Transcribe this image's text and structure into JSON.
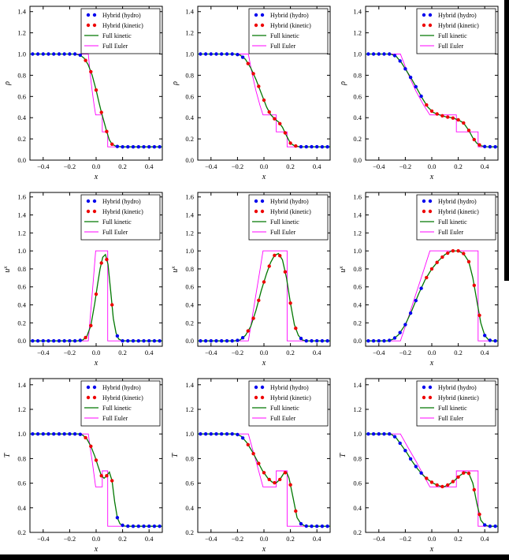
{
  "chart_data": {
    "type": "line",
    "title": "",
    "xlabel": "x",
    "xlim": [
      -0.5,
      0.5
    ],
    "xticks": [
      -0.4,
      -0.2,
      0,
      0.2,
      0.4
    ],
    "legend_position": "upper right",
    "grid": false,
    "legend": [
      {
        "label": "Hybrid (hydro)",
        "style": "markers",
        "color": "hybrid_hydro"
      },
      {
        "label": "Hybrid (kinetic)",
        "style": "markers",
        "color": "hybrid_kinetic"
      },
      {
        "label": "Full kinetic",
        "style": "line",
        "color": "kinetic"
      },
      {
        "label": "Full Euler",
        "style": "line",
        "color": "euler"
      }
    ],
    "colors": {
      "hybrid_hydro": "#0000ee",
      "hybrid_kinetic": "#ee0000",
      "kinetic": "#007700",
      "euler": "#ff00ff",
      "axis": "#000000"
    },
    "marker": {
      "start": -0.48,
      "step": 0.04,
      "count": 25
    },
    "red_intervals": [
      [
        -0.09,
        0.155
      ],
      [
        -0.13,
        0.245
      ],
      [
        -0.07,
        0.375
      ]
    ],
    "rows": [
      {
        "key": "rho",
        "ylabel": "ρ",
        "ylabel_sup": "",
        "ylim": [
          0,
          1.45
        ],
        "yticks": [
          0,
          0.2,
          0.4,
          0.6,
          0.8,
          1.0,
          1.2,
          1.4
        ]
      },
      {
        "key": "ux",
        "ylabel": "u",
        "ylabel_sup": "x",
        "ylim": [
          -0.06,
          1.65
        ],
        "yticks": [
          0,
          0.2,
          0.4,
          0.6,
          0.8,
          1.0,
          1.2,
          1.4,
          1.6
        ]
      },
      {
        "key": "T",
        "ylabel": "T",
        "ylabel_sup": "",
        "ylim": [
          0.2,
          1.45
        ],
        "yticks": [
          0.2,
          0.4,
          0.6,
          0.8,
          1.0,
          1.2,
          1.4
        ]
      }
    ],
    "subplots": [
      {
        "row": 0,
        "col": 0,
        "kinetic": [
          [
            -0.5,
            1.0
          ],
          [
            -0.16,
            1.0
          ],
          [
            -0.12,
            0.99
          ],
          [
            -0.09,
            0.96
          ],
          [
            -0.06,
            0.9
          ],
          [
            -0.03,
            0.8
          ],
          [
            0.0,
            0.66
          ],
          [
            0.02,
            0.55
          ],
          [
            0.04,
            0.45
          ],
          [
            0.06,
            0.36
          ],
          [
            0.08,
            0.27
          ],
          [
            0.1,
            0.19
          ],
          [
            0.12,
            0.15
          ],
          [
            0.15,
            0.13
          ],
          [
            0.2,
            0.125
          ],
          [
            0.5,
            0.125
          ]
        ],
        "euler": [
          [
            -0.5,
            1.0
          ],
          [
            -0.059,
            1.0
          ],
          [
            -0.045,
            0.815
          ],
          [
            -0.03,
            0.652
          ],
          [
            -0.015,
            0.515
          ],
          [
            -0.0035,
            0.426
          ],
          [
            0.0465,
            0.426
          ],
          [
            0.0465,
            0.266
          ],
          [
            0.0876,
            0.266
          ],
          [
            0.0876,
            0.125
          ],
          [
            0.5,
            0.125
          ]
        ]
      },
      {
        "row": 0,
        "col": 1,
        "kinetic": [
          [
            -0.5,
            1.0
          ],
          [
            -0.22,
            1.0
          ],
          [
            -0.18,
            0.99
          ],
          [
            -0.14,
            0.95
          ],
          [
            -0.1,
            0.87
          ],
          [
            -0.06,
            0.76
          ],
          [
            -0.02,
            0.63
          ],
          [
            0.02,
            0.5
          ],
          [
            0.05,
            0.43
          ],
          [
            0.08,
            0.39
          ],
          [
            0.11,
            0.36
          ],
          [
            0.14,
            0.31
          ],
          [
            0.17,
            0.23
          ],
          [
            0.2,
            0.16
          ],
          [
            0.23,
            0.135
          ],
          [
            0.27,
            0.126
          ],
          [
            0.5,
            0.125
          ]
        ],
        "euler": [
          [
            -0.5,
            1.0
          ],
          [
            -0.118,
            1.0
          ],
          [
            -0.09,
            0.815
          ],
          [
            -0.06,
            0.652
          ],
          [
            -0.03,
            0.515
          ],
          [
            -0.007,
            0.426
          ],
          [
            0.093,
            0.426
          ],
          [
            0.093,
            0.266
          ],
          [
            0.175,
            0.266
          ],
          [
            0.175,
            0.125
          ],
          [
            0.5,
            0.125
          ]
        ]
      },
      {
        "row": 0,
        "col": 2,
        "kinetic": [
          [
            -0.5,
            1.0
          ],
          [
            -0.31,
            1.0
          ],
          [
            -0.27,
            0.98
          ],
          [
            -0.23,
            0.92
          ],
          [
            -0.19,
            0.84
          ],
          [
            -0.15,
            0.76
          ],
          [
            -0.11,
            0.67
          ],
          [
            -0.07,
            0.58
          ],
          [
            -0.03,
            0.5
          ],
          [
            0.01,
            0.45
          ],
          [
            0.05,
            0.43
          ],
          [
            0.1,
            0.41
          ],
          [
            0.15,
            0.4
          ],
          [
            0.2,
            0.38
          ],
          [
            0.24,
            0.35
          ],
          [
            0.28,
            0.28
          ],
          [
            0.31,
            0.21
          ],
          [
            0.34,
            0.16
          ],
          [
            0.37,
            0.135
          ],
          [
            0.41,
            0.126
          ],
          [
            0.5,
            0.125
          ]
        ],
        "euler": [
          [
            -0.5,
            1.0
          ],
          [
            -0.237,
            1.0
          ],
          [
            -0.18,
            0.815
          ],
          [
            -0.12,
            0.652
          ],
          [
            -0.06,
            0.515
          ],
          [
            -0.014,
            0.426
          ],
          [
            0.186,
            0.426
          ],
          [
            0.186,
            0.266
          ],
          [
            0.35,
            0.266
          ],
          [
            0.35,
            0.125
          ],
          [
            0.5,
            0.125
          ]
        ]
      },
      {
        "row": 1,
        "col": 0,
        "kinetic": [
          [
            -0.5,
            0
          ],
          [
            -0.14,
            0
          ],
          [
            -0.1,
            0.01
          ],
          [
            -0.07,
            0.05
          ],
          [
            -0.04,
            0.17
          ],
          [
            -0.01,
            0.42
          ],
          [
            0.01,
            0.62
          ],
          [
            0.03,
            0.8
          ],
          [
            0.05,
            0.93
          ],
          [
            0.07,
            0.96
          ],
          [
            0.09,
            0.85
          ],
          [
            0.11,
            0.55
          ],
          [
            0.13,
            0.25
          ],
          [
            0.15,
            0.09
          ],
          [
            0.17,
            0.02
          ],
          [
            0.2,
            0
          ],
          [
            0.5,
            0
          ]
        ],
        "euler": [
          [
            -0.5,
            0
          ],
          [
            -0.059,
            0
          ],
          [
            -0.045,
            0.25
          ],
          [
            -0.03,
            0.52
          ],
          [
            -0.015,
            0.79
          ],
          [
            -0.0035,
            1.0
          ],
          [
            0.0876,
            1.0
          ],
          [
            0.0876,
            0
          ],
          [
            0.5,
            0
          ]
        ]
      },
      {
        "row": 1,
        "col": 1,
        "kinetic": [
          [
            -0.5,
            0
          ],
          [
            -0.22,
            0
          ],
          [
            -0.18,
            0.01
          ],
          [
            -0.14,
            0.06
          ],
          [
            -0.1,
            0.16
          ],
          [
            -0.06,
            0.34
          ],
          [
            -0.02,
            0.56
          ],
          [
            0.02,
            0.75
          ],
          [
            0.05,
            0.87
          ],
          [
            0.08,
            0.95
          ],
          [
            0.11,
            0.97
          ],
          [
            0.14,
            0.9
          ],
          [
            0.17,
            0.7
          ],
          [
            0.2,
            0.42
          ],
          [
            0.23,
            0.18
          ],
          [
            0.26,
            0.06
          ],
          [
            0.29,
            0.01
          ],
          [
            0.32,
            0
          ],
          [
            0.5,
            0
          ]
        ],
        "euler": [
          [
            -0.5,
            0
          ],
          [
            -0.118,
            0
          ],
          [
            -0.09,
            0.25
          ],
          [
            -0.06,
            0.52
          ],
          [
            -0.03,
            0.79
          ],
          [
            -0.007,
            1.0
          ],
          [
            0.175,
            1.0
          ],
          [
            0.175,
            0
          ],
          [
            0.5,
            0
          ]
        ]
      },
      {
        "row": 1,
        "col": 2,
        "kinetic": [
          [
            -0.5,
            0
          ],
          [
            -0.33,
            0
          ],
          [
            -0.29,
            0.02
          ],
          [
            -0.25,
            0.07
          ],
          [
            -0.2,
            0.18
          ],
          [
            -0.15,
            0.34
          ],
          [
            -0.1,
            0.52
          ],
          [
            -0.05,
            0.68
          ],
          [
            0.0,
            0.8
          ],
          [
            0.05,
            0.89
          ],
          [
            0.1,
            0.96
          ],
          [
            0.15,
            1.0
          ],
          [
            0.2,
            1.0
          ],
          [
            0.24,
            0.97
          ],
          [
            0.28,
            0.88
          ],
          [
            0.31,
            0.7
          ],
          [
            0.34,
            0.45
          ],
          [
            0.37,
            0.2
          ],
          [
            0.4,
            0.06
          ],
          [
            0.43,
            0.01
          ],
          [
            0.46,
            0
          ],
          [
            0.5,
            0
          ]
        ],
        "euler": [
          [
            -0.5,
            0
          ],
          [
            -0.237,
            0
          ],
          [
            -0.18,
            0.25
          ],
          [
            -0.12,
            0.52
          ],
          [
            -0.06,
            0.79
          ],
          [
            -0.014,
            1.0
          ],
          [
            0.35,
            1.0
          ],
          [
            0.35,
            0
          ],
          [
            0.5,
            0
          ]
        ]
      },
      {
        "row": 2,
        "col": 0,
        "kinetic": [
          [
            -0.5,
            1.0
          ],
          [
            -0.13,
            1.0
          ],
          [
            -0.1,
            0.99
          ],
          [
            -0.07,
            0.96
          ],
          [
            -0.04,
            0.9
          ],
          [
            -0.01,
            0.82
          ],
          [
            0.02,
            0.72
          ],
          [
            0.04,
            0.66
          ],
          [
            0.06,
            0.64
          ],
          [
            0.08,
            0.66
          ],
          [
            0.1,
            0.69
          ],
          [
            0.12,
            0.62
          ],
          [
            0.14,
            0.45
          ],
          [
            0.16,
            0.32
          ],
          [
            0.18,
            0.27
          ],
          [
            0.21,
            0.252
          ],
          [
            0.25,
            0.25
          ],
          [
            0.5,
            0.25
          ]
        ],
        "euler": [
          [
            -0.5,
            1.0
          ],
          [
            -0.059,
            1.0
          ],
          [
            -0.045,
            0.89
          ],
          [
            -0.03,
            0.78
          ],
          [
            -0.015,
            0.66
          ],
          [
            -0.0035,
            0.57
          ],
          [
            0.0465,
            0.57
          ],
          [
            0.0465,
            0.7
          ],
          [
            0.0876,
            0.7
          ],
          [
            0.0876,
            0.25
          ],
          [
            0.5,
            0.25
          ]
        ]
      },
      {
        "row": 2,
        "col": 1,
        "kinetic": [
          [
            -0.5,
            1.0
          ],
          [
            -0.21,
            1.0
          ],
          [
            -0.17,
            0.98
          ],
          [
            -0.13,
            0.93
          ],
          [
            -0.09,
            0.86
          ],
          [
            -0.05,
            0.78
          ],
          [
            -0.01,
            0.7
          ],
          [
            0.03,
            0.64
          ],
          [
            0.06,
            0.61
          ],
          [
            0.09,
            0.6
          ],
          [
            0.12,
            0.63
          ],
          [
            0.15,
            0.68
          ],
          [
            0.17,
            0.69
          ],
          [
            0.19,
            0.64
          ],
          [
            0.22,
            0.48
          ],
          [
            0.25,
            0.32
          ],
          [
            0.28,
            0.27
          ],
          [
            0.31,
            0.252
          ],
          [
            0.35,
            0.25
          ],
          [
            0.5,
            0.25
          ]
        ],
        "euler": [
          [
            -0.5,
            1.0
          ],
          [
            -0.118,
            1.0
          ],
          [
            -0.09,
            0.89
          ],
          [
            -0.06,
            0.78
          ],
          [
            -0.03,
            0.66
          ],
          [
            -0.007,
            0.57
          ],
          [
            0.093,
            0.57
          ],
          [
            0.093,
            0.7
          ],
          [
            0.175,
            0.7
          ],
          [
            0.175,
            0.25
          ],
          [
            0.5,
            0.25
          ]
        ]
      },
      {
        "row": 2,
        "col": 2,
        "kinetic": [
          [
            -0.5,
            1.0
          ],
          [
            -0.31,
            1.0
          ],
          [
            -0.27,
            0.97
          ],
          [
            -0.23,
            0.91
          ],
          [
            -0.19,
            0.85
          ],
          [
            -0.15,
            0.78
          ],
          [
            -0.11,
            0.72
          ],
          [
            -0.07,
            0.67
          ],
          [
            -0.03,
            0.63
          ],
          [
            0.01,
            0.6
          ],
          [
            0.05,
            0.58
          ],
          [
            0.09,
            0.57
          ],
          [
            0.13,
            0.59
          ],
          [
            0.17,
            0.62
          ],
          [
            0.21,
            0.66
          ],
          [
            0.25,
            0.69
          ],
          [
            0.28,
            0.68
          ],
          [
            0.31,
            0.6
          ],
          [
            0.34,
            0.44
          ],
          [
            0.37,
            0.3
          ],
          [
            0.4,
            0.26
          ],
          [
            0.43,
            0.25
          ],
          [
            0.5,
            0.25
          ]
        ],
        "euler": [
          [
            -0.5,
            1.0
          ],
          [
            -0.237,
            1.0
          ],
          [
            -0.18,
            0.89
          ],
          [
            -0.12,
            0.78
          ],
          [
            -0.06,
            0.66
          ],
          [
            -0.014,
            0.57
          ],
          [
            0.186,
            0.57
          ],
          [
            0.186,
            0.7
          ],
          [
            0.35,
            0.7
          ],
          [
            0.35,
            0.25
          ],
          [
            0.5,
            0.25
          ]
        ]
      }
    ]
  }
}
